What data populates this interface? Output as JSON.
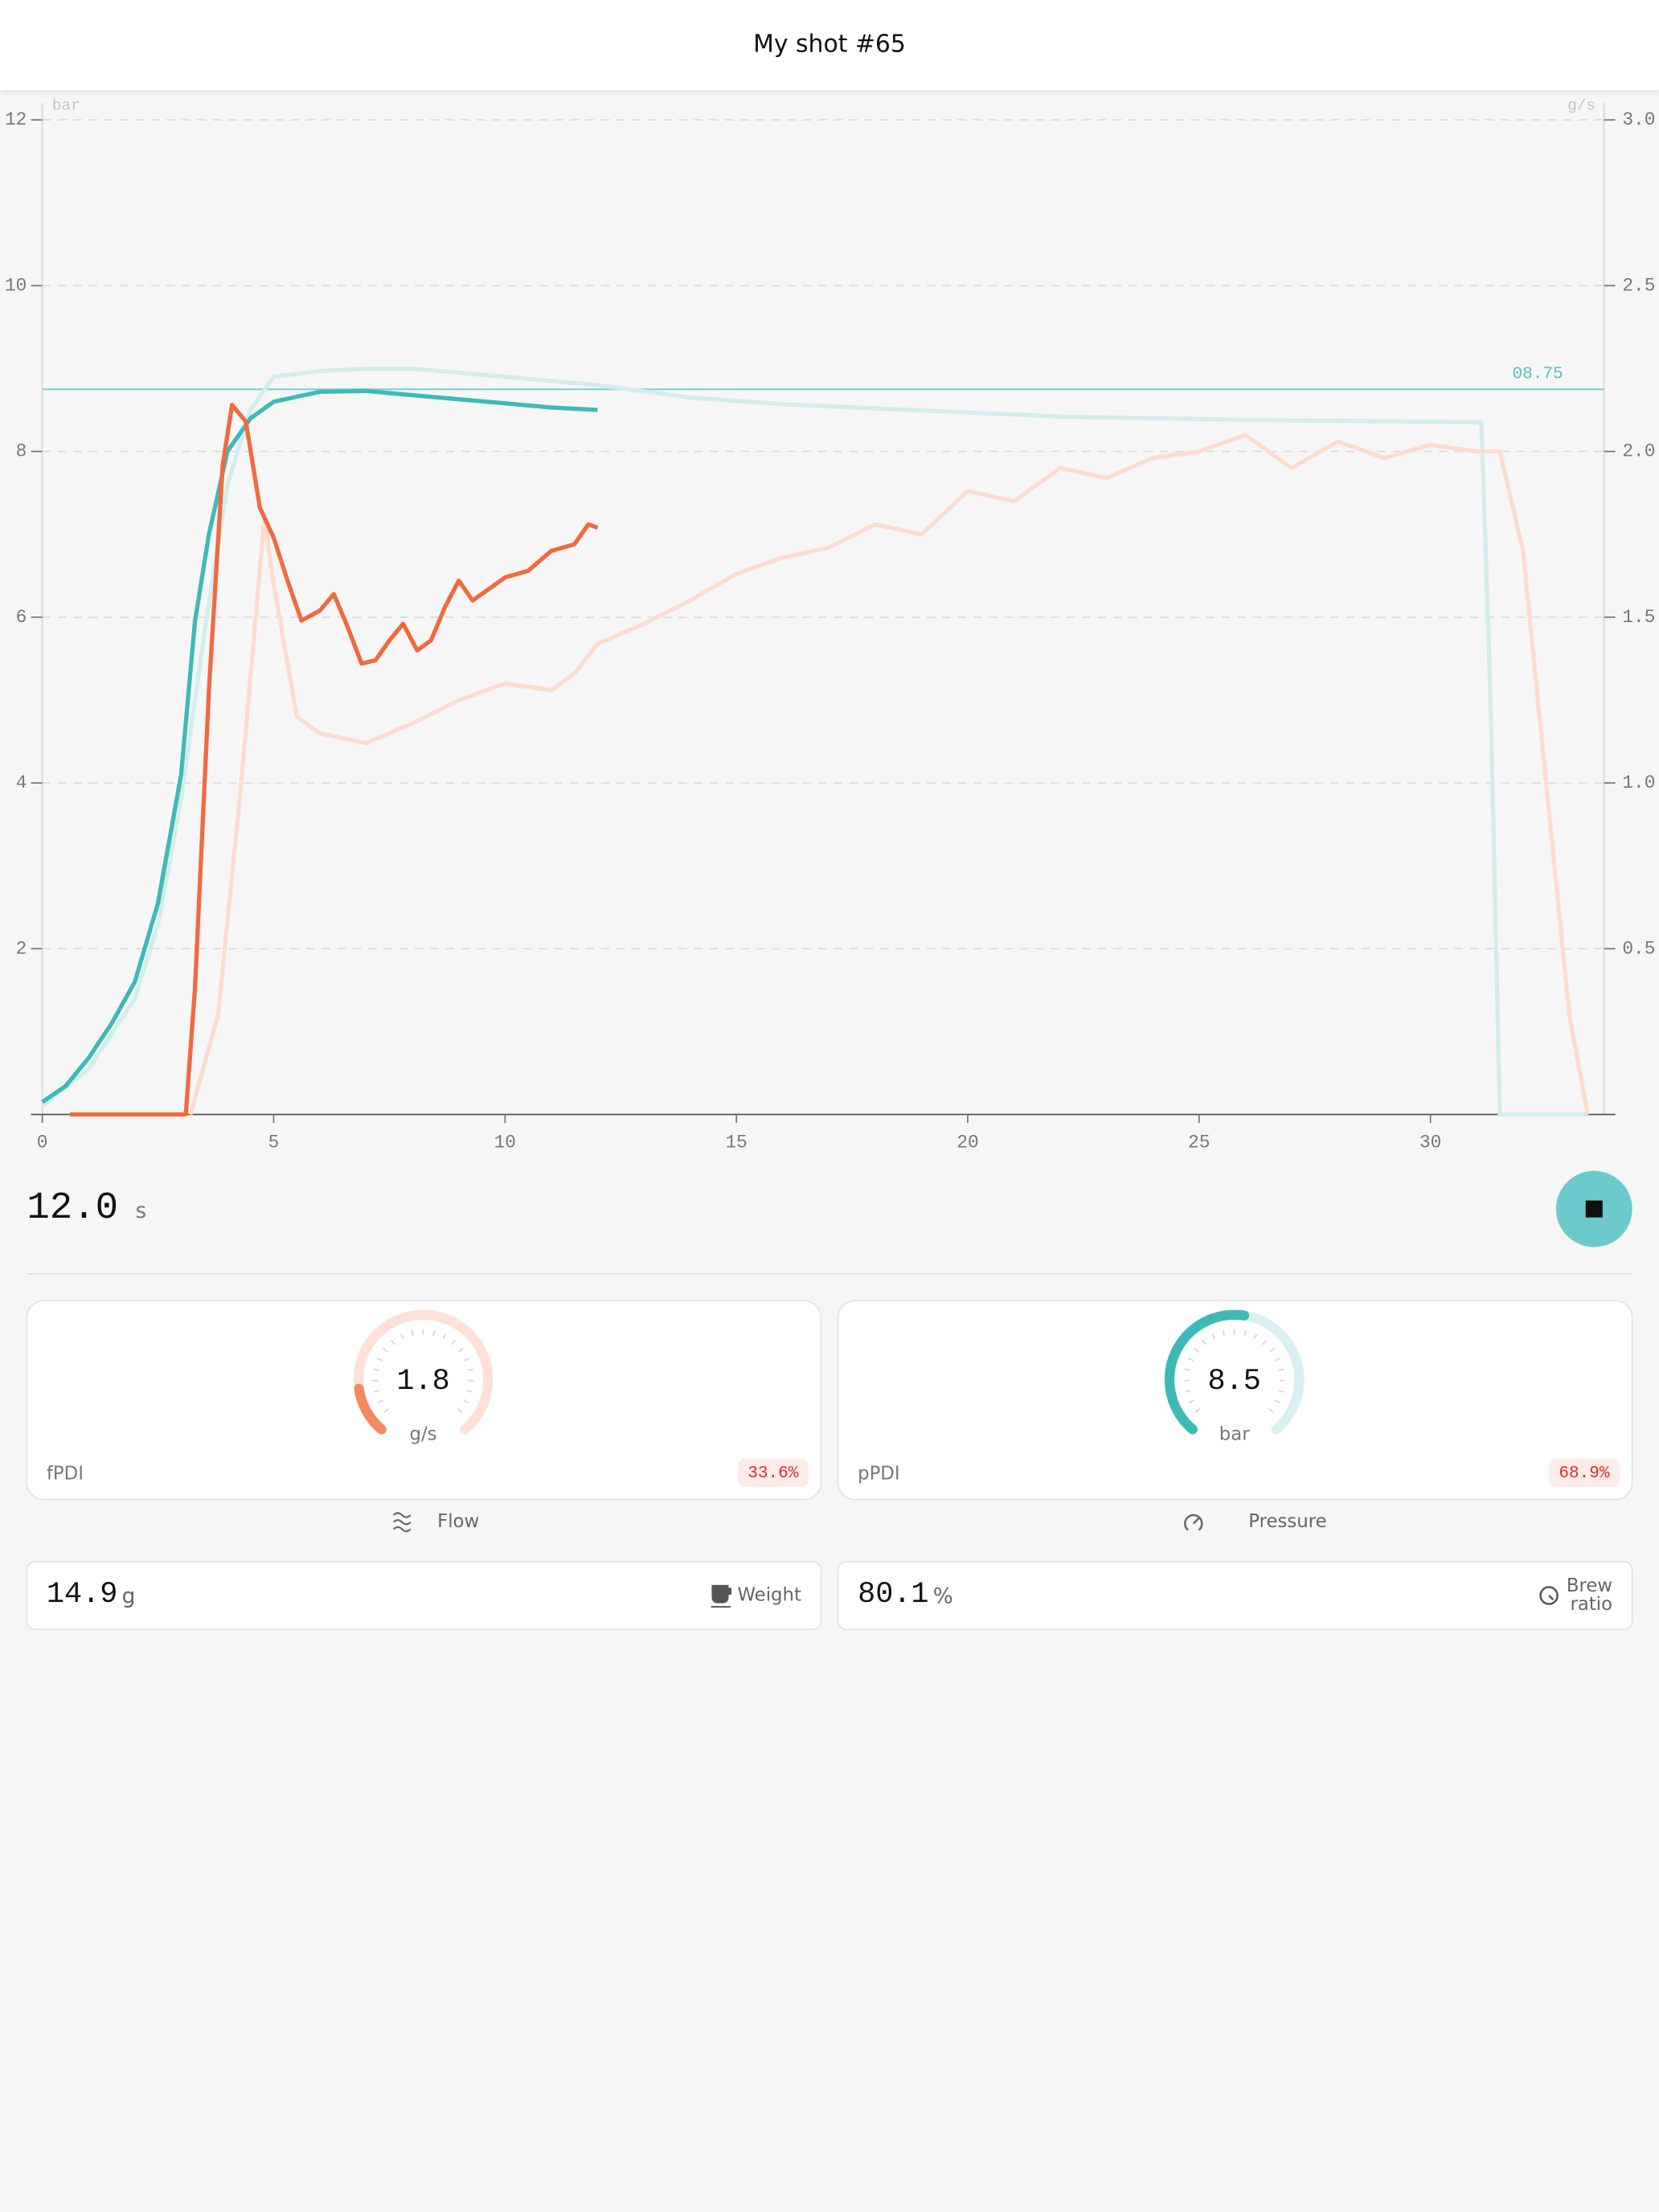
{
  "header": {
    "title": "My shot #65"
  },
  "chart_data": {
    "type": "line",
    "y_label": "bar",
    "y2_label": "g/s",
    "xlim": [
      0,
      33.75
    ],
    "xticks": [
      0,
      5,
      10,
      15,
      20,
      25,
      30
    ],
    "ylim": [
      0,
      12
    ],
    "yticks": [
      2,
      4,
      6,
      8,
      10,
      12
    ],
    "y2lim": [
      0,
      3
    ],
    "y2ticks": [
      0.5,
      {
        "value": 1,
        "label": "1.0"
      },
      1.5,
      {
        "value": 2,
        "label": "2.0"
      },
      2.5,
      {
        "value": 3,
        "label": "3.0"
      }
    ],
    "grid": true,
    "reference_line": {
      "value": 8.75,
      "label": "08.75",
      "color": "#7fd0d4"
    },
    "series": [
      {
        "color": "#d3ecec",
        "x": [
          0,
          1,
          2,
          2.5,
          3,
          3.5,
          4,
          4.5,
          5,
          6,
          7,
          8,
          10,
          12,
          14,
          16,
          18,
          20,
          22,
          24,
          26,
          28,
          30,
          31.1,
          31.3,
          31.5,
          33.4
        ],
        "values": [
          0.1,
          0.55,
          1.4,
          2.3,
          3.8,
          5.8,
          7.6,
          8.5,
          8.9,
          8.97,
          9.0,
          9.0,
          8.9,
          8.8,
          8.65,
          8.57,
          8.52,
          8.47,
          8.42,
          8.4,
          8.38,
          8.37,
          8.36,
          8.35,
          5,
          0,
          0
        ]
      },
      {
        "color": "#fcdccf",
        "axis": "y2",
        "x": [
          3.2,
          3.8,
          4.3,
          4.8,
          5,
          5.5,
          6,
          7,
          8,
          9,
          10,
          11,
          11.5,
          12,
          13,
          14,
          15,
          16,
          17,
          18,
          19,
          20,
          21,
          22,
          23,
          24,
          25,
          26,
          27,
          28,
          29,
          30,
          31,
          31.5,
          32,
          32.5,
          33,
          33.4
        ],
        "values": [
          0,
          0.3,
          1.0,
          1.8,
          1.6,
          1.2,
          1.15,
          1.12,
          1.18,
          1.25,
          1.3,
          1.28,
          1.33,
          1.42,
          1.48,
          1.55,
          1.63,
          1.68,
          1.71,
          1.78,
          1.75,
          1.88,
          1.85,
          1.95,
          1.92,
          1.98,
          2.0,
          2.05,
          1.95,
          2.03,
          1.98,
          2.02,
          2.0,
          2.0,
          1.7,
          1.0,
          0.3,
          0
        ]
      },
      {
        "color": "#3fb8b8",
        "x": [
          0,
          0.5,
          1,
          1.5,
          2,
          2.5,
          3,
          3.3,
          3.6,
          4,
          4.5,
          5,
          6,
          7,
          8,
          9,
          10,
          11,
          12
        ],
        "values": [
          0.15,
          0.34,
          0.68,
          1.1,
          1.6,
          2.55,
          4.1,
          5.95,
          7.0,
          8.0,
          8.4,
          8.6,
          8.72,
          8.73,
          8.68,
          8.63,
          8.58,
          8.53,
          8.5
        ]
      },
      {
        "color": "#f06a3e",
        "axis": "y2",
        "x": [
          0.6,
          3.1,
          3.3,
          3.6,
          3.9,
          4.1,
          4.4,
          4.7,
          5,
          5.3,
          5.6,
          6,
          6.3,
          6.6,
          6.9,
          7.2,
          7.5,
          7.8,
          8.1,
          8.4,
          8.7,
          9,
          9.3,
          9.6,
          10,
          10.5,
          11,
          11.5,
          11.8,
          12
        ],
        "values": [
          0,
          0,
          0.38,
          1.28,
          1.96,
          2.14,
          2.09,
          1.83,
          1.74,
          1.61,
          1.49,
          1.52,
          1.57,
          1.47,
          1.36,
          1.37,
          1.43,
          1.48,
          1.4,
          1.43,
          1.53,
          1.61,
          1.55,
          1.58,
          1.62,
          1.64,
          1.7,
          1.72,
          1.78,
          1.77
        ]
      }
    ]
  },
  "timer": {
    "value": "12.0",
    "unit": "s"
  },
  "gauges": [
    {
      "value": "1.8",
      "unit": "g/s",
      "label": "fPDI",
      "badge": "33.6%",
      "caption": "Flow",
      "color": "#f4885f",
      "track": "#fde0d6"
    },
    {
      "value": "8.5",
      "unit": "bar",
      "label": "pPDI",
      "badge": "68.9%",
      "caption": "Pressure",
      "color": "#3fb8b8",
      "track": "#d9f0f0"
    }
  ],
  "stats": [
    {
      "value": "14.9",
      "unit": "g",
      "label": [
        "Weight"
      ]
    },
    {
      "value": "80.1",
      "unit": "%",
      "label": [
        "Brew",
        "ratio"
      ]
    }
  ]
}
